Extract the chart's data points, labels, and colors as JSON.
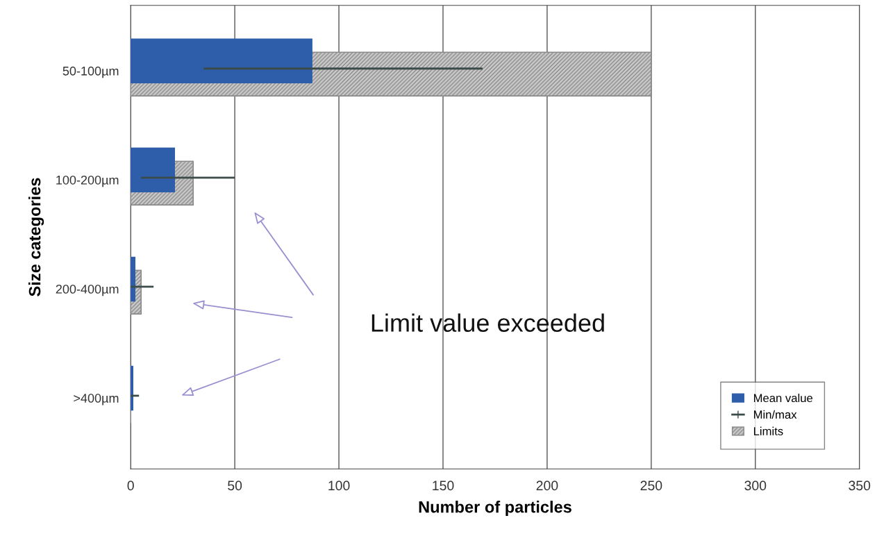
{
  "chart_data": {
    "type": "bar",
    "orientation": "horizontal",
    "xlabel": "Number of particles",
    "ylabel": "Size categories",
    "categories": [
      "50-100µm",
      "100-200µm",
      "200-400µm",
      ">400µm"
    ],
    "series": [
      {
        "name": "Mean value",
        "color": "#2e5eaa",
        "values": [
          87,
          21,
          2,
          1
        ]
      },
      {
        "name": "Min/max",
        "color": "#3b4b4a",
        "base": [
          35,
          5,
          0,
          0
        ],
        "values": [
          134,
          45,
          11,
          4
        ]
      },
      {
        "name": "Limits",
        "color": "#8a8a8a",
        "values": [
          250,
          30,
          5,
          0
        ]
      }
    ],
    "xlim": [
      0,
      350
    ],
    "xticks": [
      0,
      50,
      100,
      150,
      200,
      250,
      300,
      350
    ],
    "grid": "x",
    "legend": "bottom right",
    "annotations": [
      "Limit value exceeded"
    ]
  }
}
